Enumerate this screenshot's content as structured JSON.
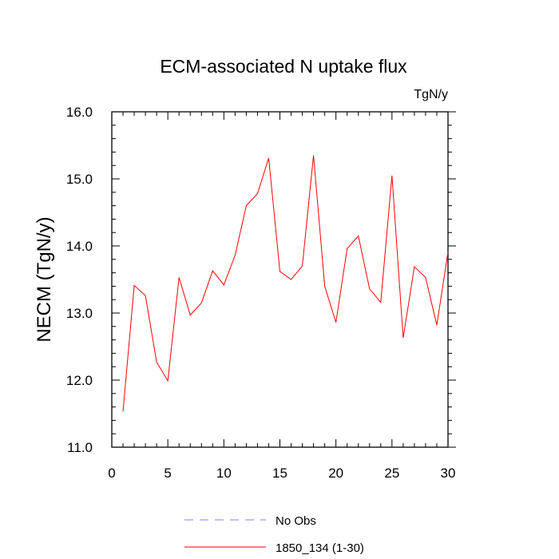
{
  "chart_data": {
    "type": "line",
    "title": "ECM-associated N uptake flux",
    "units_label": "TgN/y",
    "ylabel": "NECM  (TgN/y)",
    "xlabel": "",
    "xlim": [
      0,
      30
    ],
    "ylim": [
      11.0,
      16.0
    ],
    "x_ticks": [
      0,
      5,
      10,
      15,
      20,
      25,
      30
    ],
    "x_tick_labels": [
      "0",
      "5",
      "10",
      "15",
      "20",
      "25",
      "30"
    ],
    "y_ticks": [
      11.0,
      12.0,
      13.0,
      14.0,
      15.0,
      16.0
    ],
    "y_tick_labels": [
      "11.0",
      "12.0",
      "13.0",
      "14.0",
      "15.0",
      "16.0"
    ],
    "grid": false,
    "legend_position": "bottom-center",
    "series": [
      {
        "name": "1850_134 (1-30)",
        "color": "#ff0000",
        "dash": "solid",
        "x": [
          1,
          2,
          3,
          4,
          5,
          6,
          7,
          8,
          9,
          10,
          11,
          12,
          13,
          14,
          15,
          16,
          17,
          18,
          19,
          20,
          21,
          22,
          23,
          24,
          25,
          26,
          27,
          28,
          29,
          30
        ],
        "values": [
          11.53,
          13.41,
          13.26,
          12.27,
          11.99,
          13.53,
          12.97,
          13.15,
          13.63,
          13.42,
          13.86,
          14.6,
          14.78,
          15.31,
          13.62,
          13.5,
          13.7,
          15.35,
          13.4,
          12.86,
          13.96,
          14.15,
          13.36,
          13.16,
          15.05,
          12.63,
          13.69,
          13.53,
          12.82,
          13.91
        ]
      }
    ],
    "legend": [
      {
        "label": "No Obs",
        "color": "#8080ff",
        "dash": "dashed"
      },
      {
        "label": "1850_134 (1-30)",
        "color": "#ff0000",
        "dash": "solid"
      }
    ]
  }
}
